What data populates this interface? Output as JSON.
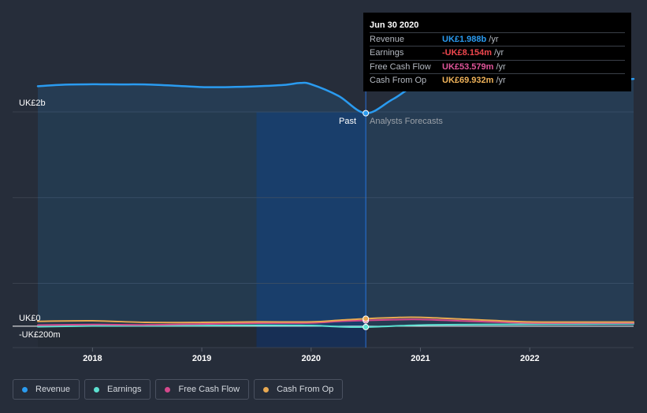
{
  "tooltip": {
    "date": "Jun 30 2020",
    "rows": [
      {
        "label": "Revenue",
        "value": "UK£1.988b",
        "unit": "/yr",
        "color": "#2a9bf0"
      },
      {
        "label": "Earnings",
        "value": "-UK£8.154m",
        "unit": "/yr",
        "color": "#f0474e"
      },
      {
        "label": "Free Cash Flow",
        "value": "UK£53.579m",
        "unit": "/yr",
        "color": "#e0559a"
      },
      {
        "label": "Cash From Op",
        "value": "UK£69.932m",
        "unit": "/yr",
        "color": "#f0b35a"
      }
    ]
  },
  "labels": {
    "past": "Past",
    "forecast": "Analysts Forecasts"
  },
  "legend": [
    {
      "label": "Revenue",
      "color": "#2a9bf0"
    },
    {
      "label": "Earnings",
      "color": "#5ce0d0"
    },
    {
      "label": "Free Cash Flow",
      "color": "#d4488c"
    },
    {
      "label": "Cash From Op",
      "color": "#e8a952"
    }
  ],
  "chart_data": {
    "type": "line",
    "y_tick_labels": [
      "UK£2b",
      "UK£0",
      "-UK£200m"
    ],
    "y_ticks": [
      2000,
      0,
      -200
    ],
    "ylim": [
      -200,
      2000
    ],
    "xlim": [
      2017.5,
      2022.95
    ],
    "x_tick_labels": [
      "2018",
      "2019",
      "2020",
      "2021",
      "2022"
    ],
    "x_ticks": [
      2018,
      2019,
      2020,
      2021,
      2022
    ],
    "past_range": [
      2019.5,
      2020.5
    ],
    "forecast_start": 2020.5,
    "highlight": {
      "x": 2020.5,
      "date": "Jun 30 2020"
    },
    "series": [
      {
        "name": "Revenue",
        "color": "#2a9bf0",
        "fill": true,
        "x": [
          2017.5,
          2017.75,
          2018.0,
          2018.25,
          2018.5,
          2018.75,
          2019.0,
          2019.25,
          2019.5,
          2019.75,
          2019.9,
          2020.0,
          2020.25,
          2020.5,
          2020.75,
          2021.0,
          2021.5,
          2022.0,
          2022.5,
          2022.95
        ],
        "y": [
          2240,
          2255,
          2258,
          2257,
          2256,
          2245,
          2232,
          2232,
          2239,
          2252,
          2270,
          2258,
          2150,
          1988,
          2120,
          2250,
          2254,
          2258,
          2280,
          2308
        ]
      },
      {
        "name": "Earnings",
        "color": "#5ce0d0",
        "fill": false,
        "x": [
          2017.5,
          2018.0,
          2018.5,
          2019.0,
          2019.5,
          2020.0,
          2020.25,
          2020.5,
          2021.0,
          2021.5,
          2022.0,
          2022.5,
          2022.95
        ],
        "y": [
          -5,
          2,
          3,
          5,
          8,
          6,
          -5,
          -8.154,
          10,
          15,
          18,
          20,
          22
        ]
      },
      {
        "name": "Free Cash Flow",
        "color": "#d4488c",
        "fill": false,
        "x": [
          2017.5,
          2018.0,
          2018.5,
          2019.0,
          2019.5,
          2020.0,
          2020.25,
          2020.5,
          2020.75,
          2021.0,
          2021.5,
          2022.0,
          2022.5,
          2022.95
        ],
        "y": [
          10,
          15,
          12,
          20,
          28,
          30,
          45,
          53.579,
          60,
          62,
          45,
          30,
          30,
          30
        ]
      },
      {
        "name": "Cash From Op",
        "color": "#e8a952",
        "fill": false,
        "x": [
          2017.5,
          2018.0,
          2018.5,
          2019.0,
          2019.5,
          2020.0,
          2020.25,
          2020.5,
          2020.75,
          2021.0,
          2021.5,
          2022.0,
          2022.5,
          2022.95
        ],
        "y": [
          45,
          50,
          35,
          35,
          40,
          40,
          55,
          69.932,
          80,
          82,
          60,
          40,
          38,
          38
        ]
      }
    ]
  }
}
